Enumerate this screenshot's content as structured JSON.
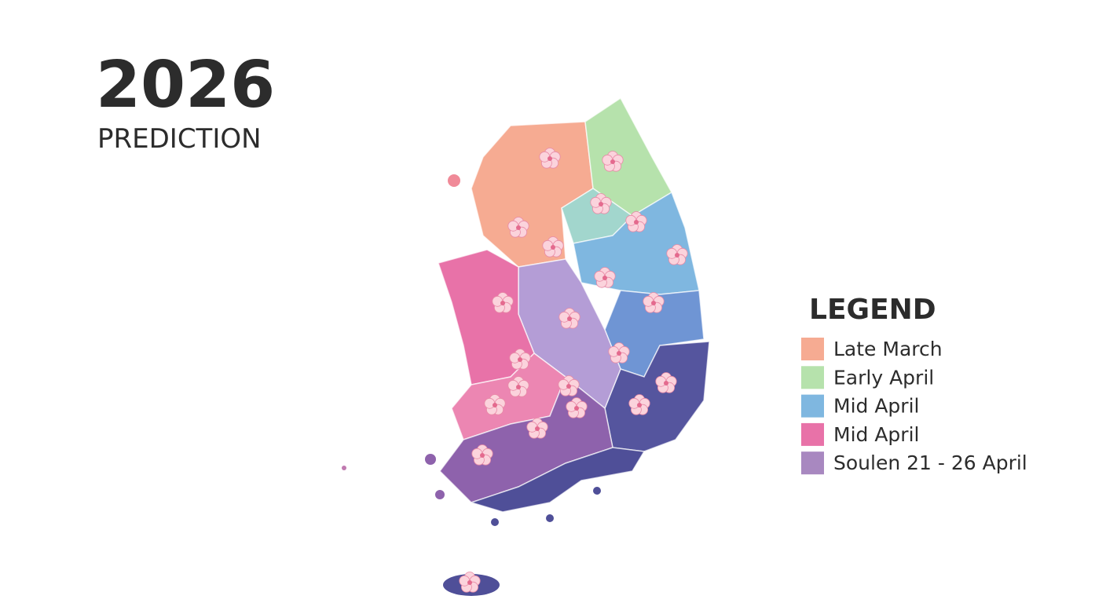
{
  "header": {
    "title": "2026",
    "subtitle": "PREDICTION"
  },
  "legend": {
    "title": "LEGEND",
    "items": [
      {
        "label": "Late March",
        "color": "#f6ab92"
      },
      {
        "label": "Early April",
        "color": "#b6e2ac"
      },
      {
        "label": "Mid April",
        "color": "#7fb7e0"
      },
      {
        "label": "Mid April",
        "color": "#e872a8"
      },
      {
        "label": "Soulen 21 - 26 April",
        "color": "#a888c0"
      }
    ]
  }
}
